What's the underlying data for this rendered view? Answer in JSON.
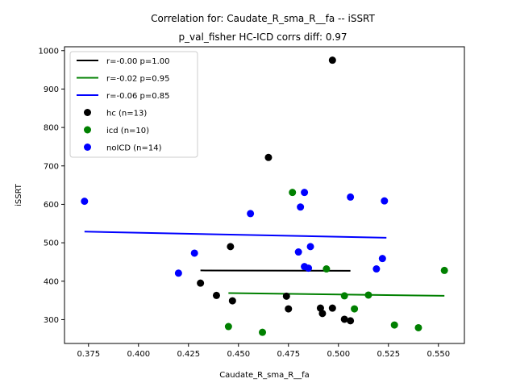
{
  "chart_data": {
    "type": "scatter",
    "title": "Correlation for: Caudate_R_sma_R__fa -- iSSRT",
    "subtitle": "p_val_fisher HC-ICD corrs diff: 0.97",
    "xlabel": "Caudate_R_sma_R__fa",
    "ylabel": "iSSRT",
    "xlim": [
      0.363,
      0.563
    ],
    "ylim": [
      238,
      1010
    ],
    "xticks": [
      0.375,
      0.4,
      0.425,
      0.45,
      0.475,
      0.5,
      0.525,
      0.55
    ],
    "xtick_labels": [
      "0.375",
      "0.400",
      "0.425",
      "0.450",
      "0.475",
      "0.500",
      "0.525",
      "0.550"
    ],
    "yticks": [
      300,
      400,
      500,
      600,
      700,
      800,
      900,
      1000
    ],
    "ytick_labels": [
      "300",
      "400",
      "500",
      "600",
      "700",
      "800",
      "900",
      "1000"
    ],
    "grid": false,
    "legend_position": "top-left",
    "legend": [
      {
        "kind": "line",
        "label": "r=-0.00 p=1.00",
        "color": "#000000"
      },
      {
        "kind": "line",
        "label": "r=-0.02 p=0.95",
        "color": "#008000"
      },
      {
        "kind": "line",
        "label": "r=-0.06 p=0.85",
        "color": "#0000ff"
      },
      {
        "kind": "marker",
        "label": "hc (n=13)",
        "color": "#000000"
      },
      {
        "kind": "marker",
        "label": "icd (n=10)",
        "color": "#008000"
      },
      {
        "kind": "marker",
        "label": "noICD (n=14)",
        "color": "#0000ff"
      }
    ],
    "fit_lines": [
      {
        "color": "#000000",
        "x": [
          0.431,
          0.506
        ],
        "y": [
          428,
          427
        ]
      },
      {
        "color": "#008000",
        "x": [
          0.445,
          0.553
        ],
        "y": [
          369,
          362
        ]
      },
      {
        "color": "#0000ff",
        "x": [
          0.373,
          0.524
        ],
        "y": [
          529,
          513
        ]
      }
    ],
    "series": [
      {
        "name": "hc (n=13)",
        "color": "#000000",
        "points": [
          [
            0.497,
            975
          ],
          [
            0.465,
            722
          ],
          [
            0.446,
            490
          ],
          [
            0.431,
            395
          ],
          [
            0.439,
            363
          ],
          [
            0.447,
            349
          ],
          [
            0.474,
            361
          ],
          [
            0.475,
            328
          ],
          [
            0.491,
            330
          ],
          [
            0.497,
            330
          ],
          [
            0.492,
            316
          ],
          [
            0.503,
            301
          ],
          [
            0.506,
            297
          ]
        ]
      },
      {
        "name": "icd (n=10)",
        "color": "#008000",
        "points": [
          [
            0.477,
            631
          ],
          [
            0.494,
            432
          ],
          [
            0.553,
            428
          ],
          [
            0.515,
            364
          ],
          [
            0.503,
            362
          ],
          [
            0.508,
            328
          ],
          [
            0.445,
            282
          ],
          [
            0.528,
            286
          ],
          [
            0.462,
            267
          ],
          [
            0.54,
            279
          ]
        ]
      },
      {
        "name": "noICD (n=14)",
        "color": "#0000ff",
        "points": [
          [
            0.373,
            608
          ],
          [
            0.483,
            631
          ],
          [
            0.506,
            619
          ],
          [
            0.481,
            593
          ],
          [
            0.523,
            609
          ],
          [
            0.456,
            576
          ],
          [
            0.486,
            490
          ],
          [
            0.428,
            473
          ],
          [
            0.48,
            476
          ],
          [
            0.522,
            459
          ],
          [
            0.483,
            438
          ],
          [
            0.485,
            434
          ],
          [
            0.519,
            432
          ],
          [
            0.42,
            421
          ]
        ]
      }
    ]
  }
}
